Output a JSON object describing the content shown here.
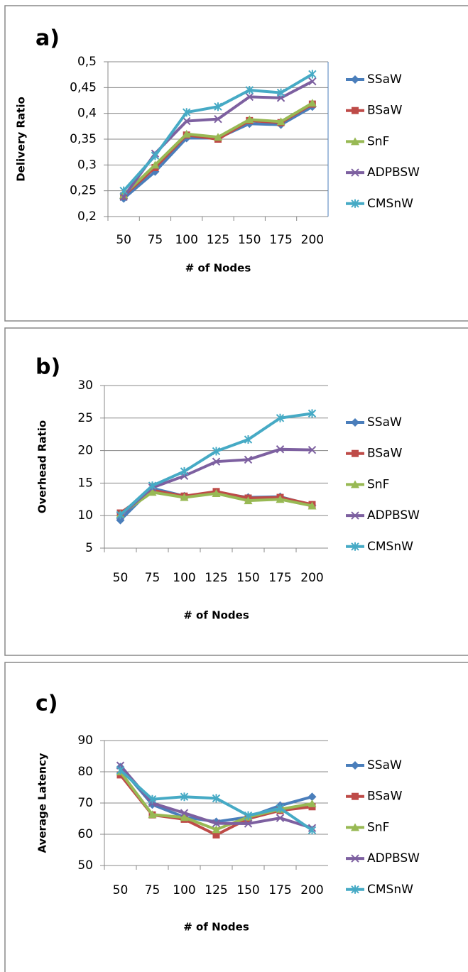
{
  "chart_data": [
    {
      "type": "line",
      "title": "a)",
      "xlabel": "# of Nodes",
      "ylabel": "Delivery Ratio",
      "categories": [
        "50",
        "75",
        "100",
        "125",
        "150",
        "175",
        "200"
      ],
      "ylim": [
        0.2,
        0.5
      ],
      "yticks": [
        {
          "value": 0.2,
          "label": "0,2"
        },
        {
          "value": 0.25,
          "label": "0,25"
        },
        {
          "value": 0.3,
          "label": "0,3"
        },
        {
          "value": 0.35,
          "label": "0,35"
        },
        {
          "value": 0.4,
          "label": "0,4"
        },
        {
          "value": 0.45,
          "label": "0,45"
        },
        {
          "value": 0.5,
          "label": "0,5"
        }
      ],
      "grid": true,
      "legend": "right",
      "series": [
        {
          "name": "SSaW",
          "color": "#4a7ebb",
          "marker": "diamond",
          "values": [
            0.235,
            0.287,
            0.352,
            0.352,
            0.38,
            0.378,
            0.413
          ]
        },
        {
          "name": "BSaW",
          "color": "#be4b48",
          "marker": "square",
          "values": [
            0.24,
            0.295,
            0.358,
            0.35,
            0.386,
            0.382,
            0.418
          ]
        },
        {
          "name": "SnF",
          "color": "#98b954",
          "marker": "triangle",
          "values": [
            0.242,
            0.3,
            0.36,
            0.354,
            0.388,
            0.384,
            0.42
          ]
        },
        {
          "name": "ADPBSW",
          "color": "#7d60a0",
          "marker": "x",
          "values": [
            0.238,
            0.322,
            0.385,
            0.389,
            0.432,
            0.43,
            0.462
          ]
        },
        {
          "name": "CMSnW",
          "color": "#46aac5",
          "marker": "star",
          "values": [
            0.25,
            0.318,
            0.402,
            0.413,
            0.445,
            0.44,
            0.476
          ]
        }
      ]
    },
    {
      "type": "line",
      "title": "b)",
      "xlabel": "# of Nodes",
      "ylabel": "Overhead Ratio",
      "categories": [
        "50",
        "75",
        "100",
        "125",
        "150",
        "175",
        "200"
      ],
      "ylim": [
        5,
        30
      ],
      "yticks": [
        5,
        10,
        15,
        20,
        25,
        30
      ],
      "grid": true,
      "legend": "right",
      "series": [
        {
          "name": "SSaW",
          "color": "#4a7ebb",
          "marker": "diamond",
          "values": [
            9.3,
            14.2,
            13,
            13.5,
            12.8,
            12.9,
            11.6
          ]
        },
        {
          "name": "BSaW",
          "color": "#be4b48",
          "marker": "square",
          "values": [
            10.4,
            13.9,
            13,
            13.7,
            12.7,
            12.8,
            11.7
          ]
        },
        {
          "name": "SnF",
          "color": "#98b954",
          "marker": "triangle",
          "values": [
            10.2,
            13.6,
            12.8,
            13.4,
            12.3,
            12.5,
            11.5
          ]
        },
        {
          "name": "ADPBSW",
          "color": "#7d60a0",
          "marker": "x",
          "values": [
            10,
            14.3,
            16.1,
            18.3,
            18.6,
            20.2,
            20.1
          ]
        },
        {
          "name": "CMSnW",
          "color": "#46aac5",
          "marker": "star",
          "values": [
            10.1,
            14.6,
            16.8,
            19.9,
            21.7,
            25,
            25.7
          ]
        }
      ]
    },
    {
      "type": "line",
      "title": "c)",
      "xlabel": "# of Nodes",
      "ylabel": "Average Latency",
      "categories": [
        "50",
        "75",
        "100",
        "125",
        "150",
        "175",
        "200"
      ],
      "ylim": [
        50,
        90
      ],
      "yticks": [
        50,
        60,
        70,
        80,
        90
      ],
      "grid": true,
      "legend": "right",
      "series": [
        {
          "name": "SSaW",
          "color": "#4a7ebb",
          "marker": "diamond",
          "values": [
            81.5,
            69.5,
            65.5,
            64,
            65.5,
            69.2,
            72
          ]
        },
        {
          "name": "BSaW",
          "color": "#be4b48",
          "marker": "square",
          "values": [
            79,
            66.2,
            64.8,
            59.8,
            65,
            67.6,
            68.8
          ]
        },
        {
          "name": "SnF",
          "color": "#98b954",
          "marker": "triangle",
          "values": [
            80,
            66.3,
            65.4,
            61.5,
            65.5,
            68,
            69.8
          ]
        },
        {
          "name": "ADPBSW",
          "color": "#7d60a0",
          "marker": "x",
          "values": [
            82,
            70,
            66.8,
            63.5,
            63.4,
            65.2,
            62
          ]
        },
        {
          "name": "CMSnW",
          "color": "#46aac5",
          "marker": "star",
          "values": [
            80.5,
            71.2,
            72,
            71.5,
            66,
            68.3,
            61.3
          ]
        }
      ]
    }
  ]
}
